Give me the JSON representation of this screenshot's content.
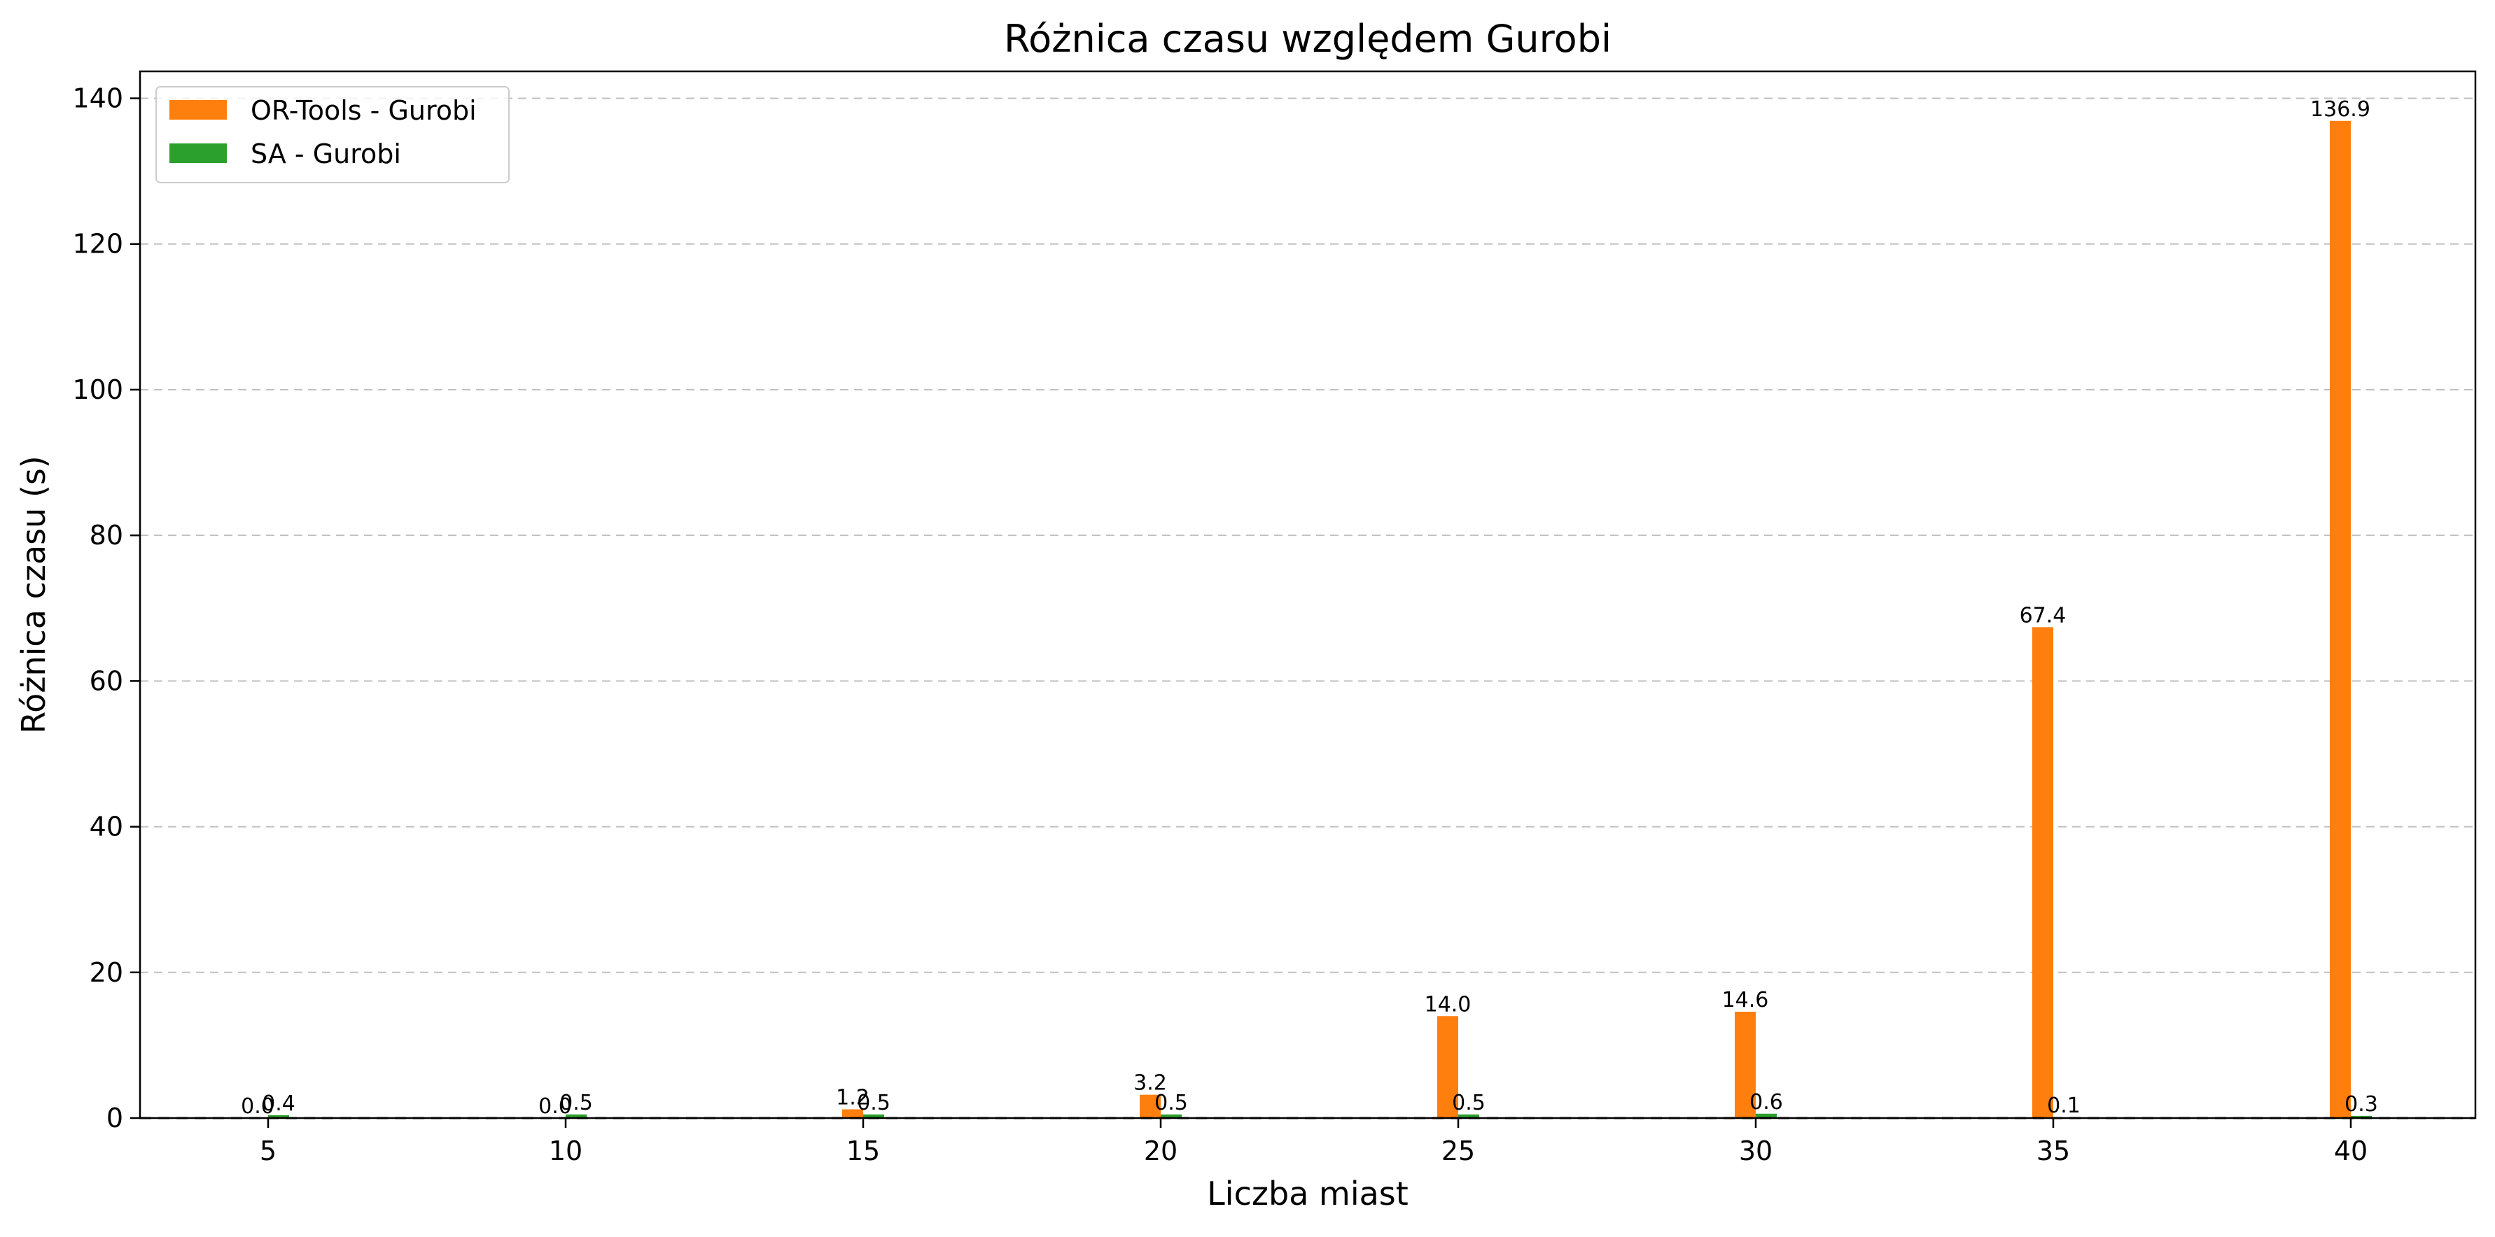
{
  "chart_data": {
    "type": "bar",
    "title": "Różnica czasu względem Gurobi",
    "xlabel": "Liczba miast",
    "ylabel": "Różnica czasu (s)",
    "categories": [
      "5",
      "10",
      "15",
      "20",
      "25",
      "30",
      "35",
      "40"
    ],
    "series": [
      {
        "name": "OR-Tools - Gurobi",
        "color": "#ff7f0e",
        "values": [
          0.0,
          0.0,
          1.2,
          3.2,
          14.0,
          14.6,
          67.4,
          136.9
        ],
        "labels": [
          "0.0",
          "0.0",
          "1.2",
          "3.2",
          "14.0",
          "14.6",
          "67.4",
          "136.9"
        ]
      },
      {
        "name": "SA - Gurobi",
        "color": "#2ca02c",
        "values": [
          0.4,
          0.5,
          0.5,
          0.5,
          0.5,
          0.6,
          0.1,
          0.3
        ],
        "labels": [
          "0.4",
          "0.5",
          "0.5",
          "0.5",
          "0.5",
          "0.6",
          "0.1",
          "0.3"
        ]
      }
    ],
    "ylim": [
      0,
      143.7
    ],
    "yticks": [
      0,
      20,
      40,
      60,
      80,
      100,
      120,
      140
    ],
    "grid": "horizontal-dashed",
    "reference_line": 0,
    "legend_position": "top-left"
  }
}
